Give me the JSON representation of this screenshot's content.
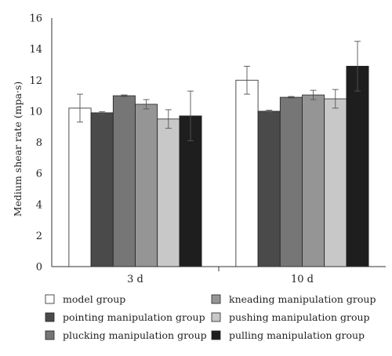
{
  "chart_data": {
    "type": "bar",
    "ylabel": "Medium shear rate (mpa·s)",
    "xlabel": "",
    "ylim": [
      0,
      16
    ],
    "yticks": [
      0,
      2,
      4,
      6,
      8,
      10,
      12,
      14,
      16
    ],
    "grid": false,
    "legend_position": "bottom",
    "categories": [
      "3 d",
      "10 d"
    ],
    "series": [
      {
        "name": "model group",
        "color": "#ffffff",
        "values": [
          10.2,
          12.0
        ],
        "errors": [
          0.9,
          0.9
        ]
      },
      {
        "name": "pointing manipulation group",
        "color": "#4a4a4a",
        "values": [
          9.9,
          10.0
        ],
        "errors": [
          0.07,
          0.07
        ]
      },
      {
        "name": "plucking manipulation group",
        "color": "#767676",
        "values": [
          11.0,
          10.9
        ],
        "errors": [
          0.05,
          0.05
        ]
      },
      {
        "name": "kneading manipulation group",
        "color": "#959595",
        "values": [
          10.45,
          11.05
        ],
        "errors": [
          0.3,
          0.3
        ]
      },
      {
        "name": "pushing manipulation group",
        "color": "#c8c8c8",
        "values": [
          9.5,
          10.8
        ],
        "errors": [
          0.6,
          0.6
        ]
      },
      {
        "name": "pulling manipulation group",
        "color": "#1e1e1e",
        "values": [
          9.7,
          12.9
        ],
        "errors": [
          1.6,
          1.6
        ]
      }
    ]
  }
}
